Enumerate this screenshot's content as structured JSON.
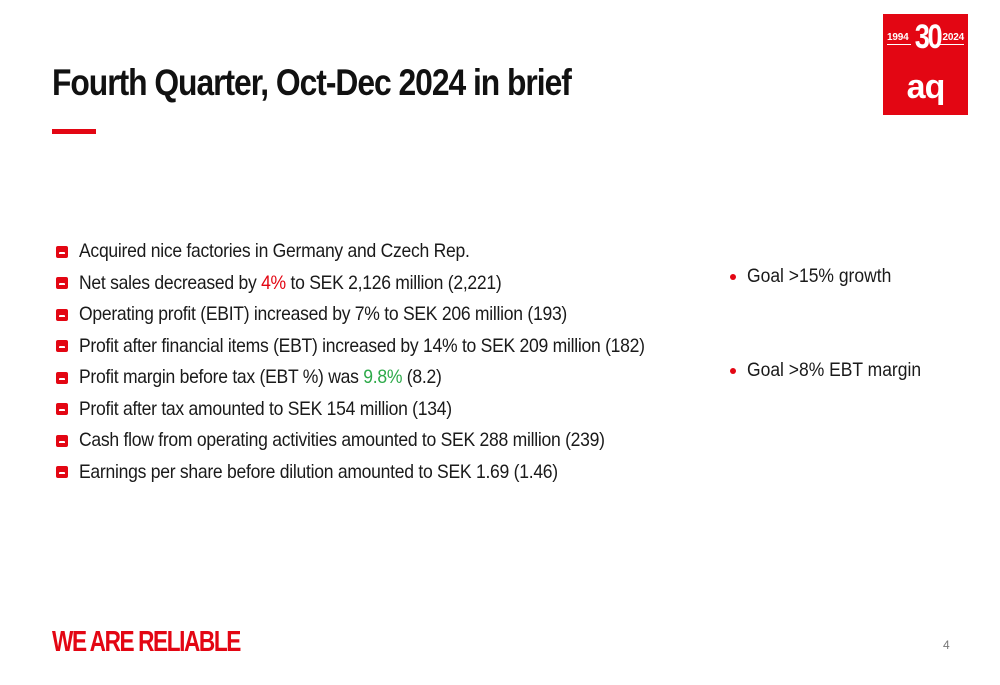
{
  "title": "Fourth Quarter, Oct-Dec 2024 in brief",
  "logo": {
    "year_start": "1994",
    "anniversary": "30",
    "year_end": "2024",
    "brand": "aq"
  },
  "bullets": [
    {
      "segments": [
        "Acquired nice factories in Germany and Czech Rep."
      ]
    },
    {
      "segments": [
        "Net sales decreased by ",
        "4%",
        " to SEK 2,126 million (2,221)"
      ],
      "highlight": {
        "index": 1,
        "color": "#e30613"
      }
    },
    {
      "segments": [
        "Operating profit (EBIT) increased by 7% to SEK 206 million (193)"
      ]
    },
    {
      "segments": [
        "Profit after financial items (EBT) increased by 14% to SEK 209 million (182)"
      ]
    },
    {
      "segments": [
        "Profit margin before tax (EBT %) was ",
        "9.8%",
        " (8.2)"
      ],
      "highlight": {
        "index": 1,
        "color": "#2eaa4a"
      }
    },
    {
      "segments": [
        "Profit after tax amounted to SEK 154 million (134)"
      ]
    },
    {
      "segments": [
        "Cash flow from operating activities amounted to SEK 288 million (239)"
      ]
    },
    {
      "segments": [
        "Earnings per share before dilution amounted to SEK 1.69 (1.46)"
      ]
    }
  ],
  "goals": {
    "growth": "Goal >15% growth",
    "margin": "Goal >8% EBT margin"
  },
  "footer": {
    "tagline": "WE ARE RELIABLE",
    "page_number": "4"
  },
  "colors": {
    "brand_red": "#e30613",
    "positive_green": "#2eaa4a"
  }
}
